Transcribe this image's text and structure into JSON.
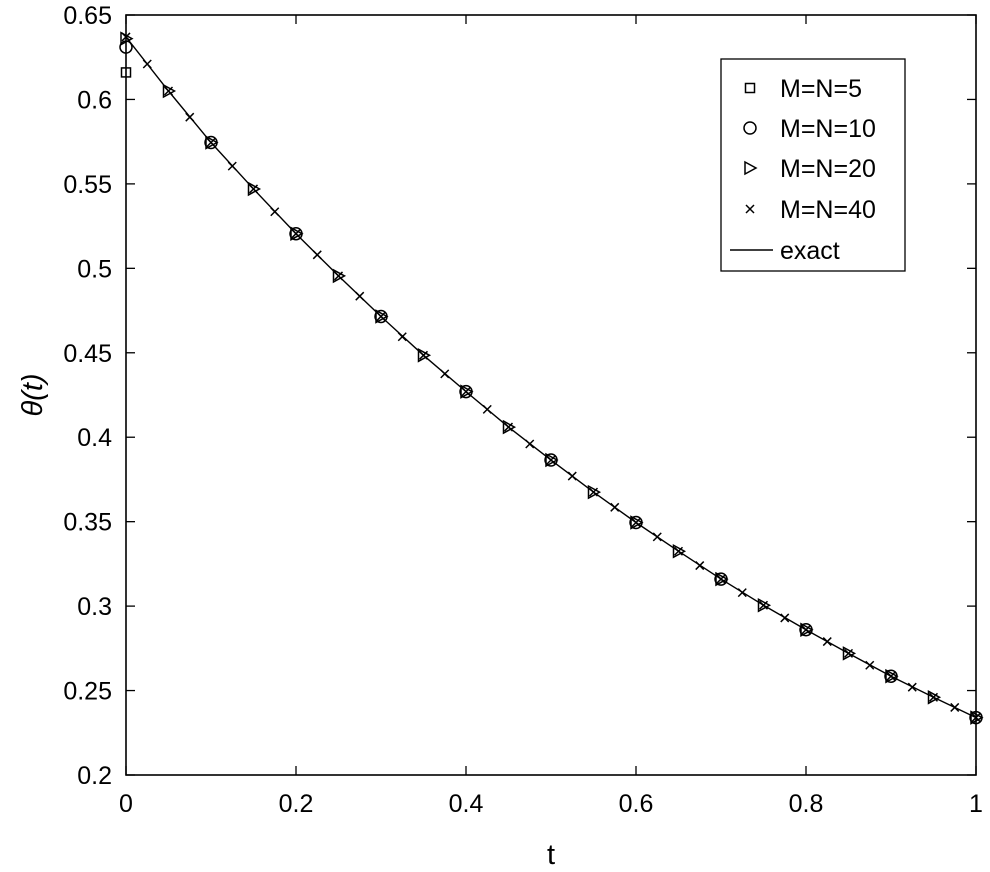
{
  "chart_data": {
    "type": "line",
    "title": "",
    "xlabel": "t",
    "ylabel": "θ(t)",
    "xlim": [
      0,
      1
    ],
    "ylim": [
      0.2,
      0.65
    ],
    "grid": false,
    "legend_position": "top-right",
    "x_ticks": [
      0,
      0.2,
      0.4,
      0.6,
      0.8,
      1
    ],
    "x_tick_labels": [
      "0",
      "0.2",
      "0.4",
      "0.6",
      "0.8",
      "1"
    ],
    "y_ticks": [
      0.2,
      0.25,
      0.3,
      0.35,
      0.4,
      0.45,
      0.5,
      0.55,
      0.6,
      0.65
    ],
    "y_tick_labels": [
      "0.2",
      "0.25",
      "0.3",
      "0.35",
      "0.4",
      "0.45",
      "0.5",
      "0.55",
      "0.6",
      "0.65"
    ],
    "series": [
      {
        "name": "M=N=5",
        "marker": "square",
        "x": [
          0
        ],
        "y": [
          0.616
        ]
      },
      {
        "name": "M=N=10",
        "marker": "circle",
        "x": [
          0,
          0.1,
          0.2,
          0.3,
          0.4,
          0.5,
          0.6,
          0.7,
          0.8,
          0.9,
          1.0
        ],
        "y": [
          0.631,
          0.5745,
          0.5205,
          0.4715,
          0.427,
          0.3865,
          0.3495,
          0.316,
          0.286,
          0.2585,
          0.234
        ]
      },
      {
        "name": "M=N=20",
        "marker": "triangle-right",
        "x": [
          0,
          0.05,
          0.1,
          0.15,
          0.2,
          0.25,
          0.3,
          0.35,
          0.4,
          0.45,
          0.5,
          0.55,
          0.6,
          0.65,
          0.7,
          0.75,
          0.8,
          0.85,
          0.9,
          0.95,
          1.0
        ],
        "y": [
          0.636,
          0.605,
          0.5745,
          0.547,
          0.5205,
          0.4955,
          0.4715,
          0.4485,
          0.427,
          0.406,
          0.3865,
          0.3675,
          0.3495,
          0.3325,
          0.316,
          0.3005,
          0.286,
          0.272,
          0.2585,
          0.246,
          0.234
        ]
      },
      {
        "name": "M=N=40",
        "marker": "x",
        "x": [
          0,
          0.025,
          0.05,
          0.075,
          0.1,
          0.125,
          0.15,
          0.175,
          0.2,
          0.225,
          0.25,
          0.275,
          0.3,
          0.325,
          0.35,
          0.375,
          0.4,
          0.425,
          0.45,
          0.475,
          0.5,
          0.525,
          0.55,
          0.575,
          0.6,
          0.625,
          0.65,
          0.675,
          0.7,
          0.725,
          0.75,
          0.775,
          0.8,
          0.825,
          0.85,
          0.875,
          0.9,
          0.925,
          0.95,
          0.975,
          1.0
        ],
        "y": [
          0.637,
          0.621,
          0.605,
          0.5895,
          0.5745,
          0.5605,
          0.547,
          0.5335,
          0.5205,
          0.508,
          0.4955,
          0.4835,
          0.4715,
          0.4595,
          0.4485,
          0.4375,
          0.427,
          0.4165,
          0.406,
          0.396,
          0.3865,
          0.377,
          0.3675,
          0.3585,
          0.3495,
          0.341,
          0.3325,
          0.324,
          0.316,
          0.308,
          0.3005,
          0.293,
          0.286,
          0.279,
          0.272,
          0.265,
          0.2585,
          0.252,
          0.246,
          0.24,
          0.234
        ]
      },
      {
        "name": "exact",
        "marker": "line",
        "x": [
          0,
          0.05,
          0.1,
          0.15,
          0.2,
          0.25,
          0.3,
          0.35,
          0.4,
          0.45,
          0.5,
          0.55,
          0.6,
          0.65,
          0.7,
          0.75,
          0.8,
          0.85,
          0.9,
          0.95,
          1.0
        ],
        "y": [
          0.637,
          0.605,
          0.5745,
          0.547,
          0.5205,
          0.4955,
          0.4715,
          0.4485,
          0.427,
          0.406,
          0.3865,
          0.3675,
          0.3495,
          0.3325,
          0.316,
          0.3005,
          0.286,
          0.272,
          0.2585,
          0.246,
          0.234
        ]
      }
    ]
  }
}
